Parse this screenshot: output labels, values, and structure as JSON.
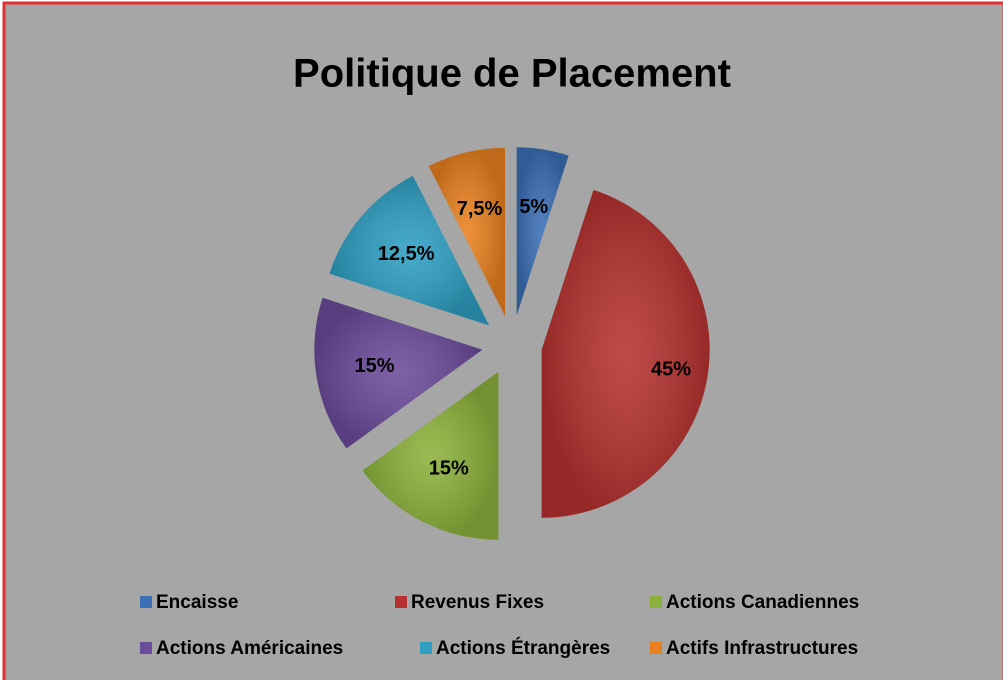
{
  "chart_data": {
    "type": "pie",
    "title": "Politique de Placement",
    "categories": [
      "Encaisse",
      "Revenus Fixes",
      "Actions Canadiennes",
      "Actions Américaines",
      "Actions Étrangères",
      "Actifs Infrastructures"
    ],
    "values": [
      5,
      45,
      15,
      15,
      12.5,
      7.5
    ],
    "value_labels": [
      "5%",
      "45%",
      "15%",
      "15%",
      "12,5%",
      "7,5%"
    ],
    "colors": [
      "#3b6fb6",
      "#b5322f",
      "#8cb13b",
      "#6b4c9a",
      "#2e9fc2",
      "#e8811f"
    ],
    "legend": "bottom"
  }
}
